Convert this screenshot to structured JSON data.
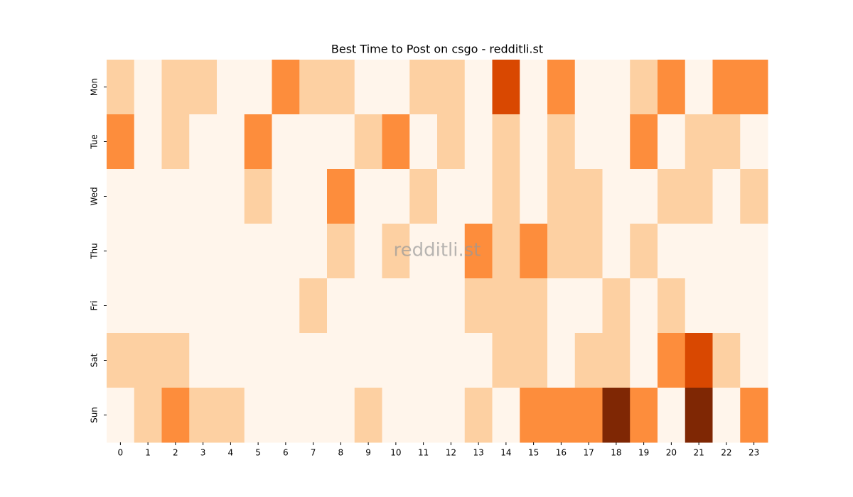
{
  "chart_data": {
    "type": "heatmap",
    "title": "Best Time to Post on csgo - redditli.st",
    "watermark": "redditli.st",
    "x_categories": [
      "0",
      "1",
      "2",
      "3",
      "4",
      "5",
      "6",
      "7",
      "8",
      "9",
      "10",
      "11",
      "12",
      "13",
      "14",
      "15",
      "16",
      "17",
      "18",
      "19",
      "20",
      "21",
      "22",
      "23"
    ],
    "y_categories": [
      "Mon",
      "Tue",
      "Wed",
      "Thu",
      "Fri",
      "Sat",
      "Sun"
    ],
    "values": [
      [
        1,
        0,
        1,
        1,
        0,
        0,
        2,
        1,
        1,
        0,
        0,
        1,
        1,
        0,
        3,
        0,
        2,
        0,
        0,
        1,
        2,
        0,
        2,
        2
      ],
      [
        2,
        0,
        1,
        0,
        0,
        2,
        0,
        0,
        0,
        1,
        2,
        0,
        1,
        0,
        1,
        0,
        1,
        0,
        0,
        2,
        0,
        1,
        1,
        0
      ],
      [
        0,
        0,
        0,
        0,
        0,
        1,
        0,
        0,
        2,
        0,
        0,
        1,
        0,
        0,
        1,
        0,
        1,
        1,
        0,
        0,
        1,
        1,
        0,
        1
      ],
      [
        0,
        0,
        0,
        0,
        0,
        0,
        0,
        0,
        1,
        0,
        1,
        0,
        0,
        2,
        1,
        2,
        1,
        1,
        0,
        1,
        0,
        0,
        0,
        0
      ],
      [
        0,
        0,
        0,
        0,
        0,
        0,
        0,
        1,
        0,
        0,
        0,
        0,
        0,
        1,
        1,
        1,
        0,
        0,
        1,
        0,
        1,
        0,
        0,
        0
      ],
      [
        1,
        1,
        1,
        0,
        0,
        0,
        0,
        0,
        0,
        0,
        0,
        0,
        0,
        0,
        1,
        1,
        0,
        1,
        1,
        0,
        2,
        3,
        1,
        0
      ],
      [
        0,
        1,
        2,
        1,
        1,
        0,
        0,
        0,
        0,
        1,
        0,
        0,
        0,
        1,
        0,
        2,
        2,
        2,
        4,
        2,
        0,
        4,
        0,
        2
      ]
    ],
    "zlim": [
      0,
      4
    ],
    "colormap": [
      "#fff5eb",
      "#fdd0a2",
      "#fd8d3c",
      "#d94801",
      "#7f2704"
    ]
  }
}
